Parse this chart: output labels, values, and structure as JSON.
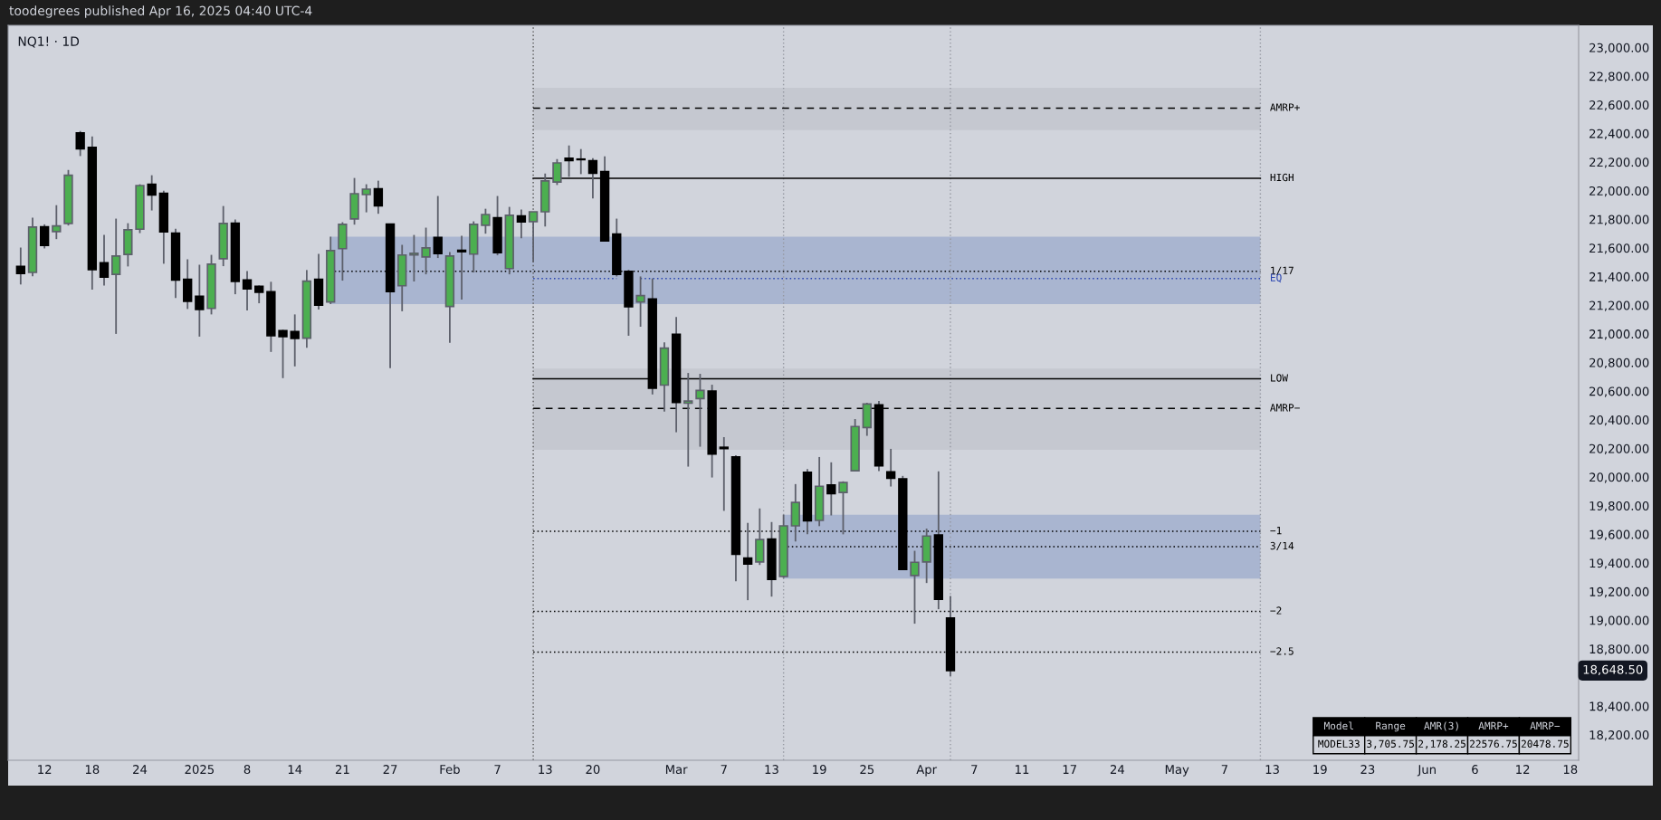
{
  "chart_data": {
    "type": "candlestick",
    "title": "NQ1! · 1D",
    "subtitle": "toodegrees published Apr 16, 2025 04:40 UTC-4",
    "categories": [
      null,
      null,
      "12",
      null,
      null,
      null,
      "18",
      null,
      null,
      null,
      "24",
      null,
      null,
      null,
      null,
      "2025",
      null,
      null,
      null,
      "8",
      null,
      null,
      null,
      "14",
      null,
      null,
      null,
      "21",
      null,
      null,
      null,
      "27",
      null,
      null,
      null,
      null,
      "Feb",
      null,
      null,
      null,
      "7",
      null,
      null,
      null,
      "13",
      null,
      null,
      null,
      "20",
      null,
      null,
      null,
      null,
      null,
      null,
      "Mar",
      null,
      null,
      null,
      "7",
      null,
      null,
      null,
      "13",
      null,
      null,
      null,
      "19",
      null,
      null,
      null,
      "25",
      null,
      null,
      null,
      null,
      "Apr",
      null,
      null,
      null,
      "7",
      null,
      null,
      null,
      "11",
      null,
      null,
      null,
      "17",
      null,
      null,
      null,
      "24",
      null,
      null,
      null,
      null,
      "May",
      null,
      null,
      null,
      "7",
      null,
      null,
      null,
      "13",
      null,
      null,
      null,
      "19",
      null,
      null,
      null,
      "23",
      null,
      null,
      null,
      null,
      "Jun",
      null,
      null,
      null,
      "6",
      null,
      null,
      null,
      "12",
      null,
      null,
      null,
      "18"
    ],
    "ohlc": [
      [
        21471,
        21603,
        21345,
        21422
      ],
      [
        21429,
        21811,
        21403,
        21746
      ],
      [
        21748,
        21765,
        21597,
        21618
      ],
      [
        21714,
        21899,
        21662,
        21754
      ],
      [
        21771,
        22145,
        21757,
        22108
      ],
      [
        22404,
        22417,
        22242,
        22293
      ],
      [
        22303,
        22379,
        21309,
        21448
      ],
      [
        21496,
        21691,
        21338,
        21397
      ],
      [
        21416,
        21805,
        21000,
        21544
      ],
      [
        21555,
        21773,
        21471,
        21727
      ],
      [
        21731,
        22045,
        21704,
        22036
      ],
      [
        22045,
        22108,
        21862,
        21971
      ],
      [
        21982,
        22000,
        21490,
        21712
      ],
      [
        21704,
        21735,
        21250,
        21376
      ],
      [
        21382,
        21521,
        21174,
        21227
      ],
      [
        21262,
        21483,
        20981,
        21170
      ],
      [
        21178,
        21552,
        21136,
        21487
      ],
      [
        21525,
        21893,
        21473,
        21771
      ],
      [
        21773,
        21799,
        21277,
        21366
      ],
      [
        21376,
        21439,
        21164,
        21315
      ],
      [
        21332,
        21338,
        21214,
        21290
      ],
      [
        21294,
        21364,
        20874,
        20987
      ],
      [
        21023,
        21029,
        20691,
        20981
      ],
      [
        21017,
        21136,
        20773,
        20968
      ],
      [
        20970,
        21446,
        20903,
        21368
      ],
      [
        21382,
        21559,
        21170,
        21201
      ],
      [
        21223,
        21679,
        21208,
        21582
      ],
      [
        21595,
        21780,
        21372,
        21765
      ],
      [
        21803,
        22089,
        21763,
        21979
      ],
      [
        21973,
        22045,
        21849,
        22011
      ],
      [
        22013,
        22070,
        21839,
        21895
      ],
      [
        21767,
        21767,
        20760,
        21296
      ],
      [
        21336,
        21622,
        21158,
        21551
      ],
      [
        21551,
        21691,
        21366,
        21563
      ],
      [
        21538,
        21742,
        21416,
        21601
      ],
      [
        21673,
        21963,
        21530,
        21561
      ],
      [
        21191,
        21572,
        20937,
        21544
      ],
      [
        21584,
        21685,
        21240,
        21574
      ],
      [
        21557,
        21786,
        21429,
        21765
      ],
      [
        21759,
        21874,
        21700,
        21834
      ],
      [
        21811,
        21963,
        21549,
        21567
      ],
      [
        21456,
        21887,
        21416,
        21828
      ],
      [
        21824,
        21868,
        21668,
        21782
      ],
      [
        21784,
        21853,
        21502,
        21853
      ],
      [
        21853,
        22120,
        21750,
        22068
      ],
      [
        22061,
        22221,
        22040,
        22194
      ],
      [
        22227,
        22316,
        22097,
        22211
      ],
      [
        22221,
        22291,
        22116,
        22217
      ],
      [
        22209,
        22227,
        21946,
        22122
      ],
      [
        22133,
        22240,
        21649,
        21649
      ],
      [
        21698,
        21805,
        21401,
        21416
      ],
      [
        21437,
        21448,
        20987,
        21189
      ],
      [
        21223,
        21401,
        21050,
        21267
      ],
      [
        21244,
        21387,
        20577,
        20621
      ],
      [
        20642,
        20941,
        20457,
        20901
      ],
      [
        20998,
        21118,
        20313,
        20521
      ],
      [
        20516,
        20727,
        20073,
        20531
      ],
      [
        20548,
        20721,
        20212,
        20605
      ],
      [
        20600,
        20645,
        19997,
        20161
      ],
      [
        20208,
        20279,
        19764,
        20199
      ],
      [
        20140,
        20153,
        19272,
        19461
      ],
      [
        19434,
        19680,
        19140,
        19392
      ],
      [
        19407,
        19781,
        19386,
        19564
      ],
      [
        19567,
        19686,
        19165,
        19285
      ],
      [
        19306,
        19737,
        19295,
        19659
      ],
      [
        19659,
        19951,
        19550,
        19823
      ],
      [
        20033,
        20056,
        19600,
        19695
      ],
      [
        19697,
        20140,
        19657,
        19936
      ],
      [
        19945,
        20103,
        19732,
        19884
      ],
      [
        19892,
        19970,
        19600,
        19962
      ],
      [
        20044,
        20405,
        20044,
        20353
      ],
      [
        20346,
        20519,
        20288,
        20510
      ],
      [
        20504,
        20531,
        20042,
        20079
      ],
      [
        20037,
        20197,
        19934,
        19991
      ],
      [
        19987,
        20008,
        19354,
        19354
      ],
      [
        19312,
        19485,
        18976,
        19405
      ],
      [
        19407,
        19640,
        19260,
        19588
      ],
      [
        19596,
        20040,
        19077,
        19146
      ],
      [
        19016,
        19169,
        18610,
        18648.5
      ],
      null,
      null,
      null,
      null,
      null,
      null,
      null,
      null,
      null,
      null,
      null,
      null,
      null,
      null,
      null,
      null,
      null,
      null,
      null,
      null,
      null,
      null,
      null,
      null,
      null,
      null,
      null,
      null,
      null,
      null,
      null,
      null,
      null,
      null,
      null,
      null,
      null,
      null,
      null,
      null,
      null,
      null,
      null,
      null,
      null,
      null,
      null,
      null,
      null,
      null,
      null,
      null
    ],
    "colors": [
      "#000000",
      "#4caf50",
      "#000000",
      "#4caf50",
      "#4caf50",
      "#000000",
      "#000000",
      "#000000",
      "#4caf50",
      "#4caf50",
      "#4caf50",
      "#000000",
      "#000000",
      "#000000",
      "#000000",
      "#000000",
      "#4caf50",
      "#4caf50",
      "#000000",
      "#000000",
      "#000000",
      "#000000",
      "#000000",
      "#000000",
      "#4caf50",
      "#000000",
      "#4caf50",
      "#4caf50",
      "#4caf50",
      "#4caf50",
      "#000000",
      "#000000",
      "#4caf50",
      "#4caf50",
      "#4caf50",
      "#000000",
      "#4caf50",
      "#000000",
      "#4caf50",
      "#4caf50",
      "#000000",
      "#4caf50",
      "#000000",
      "#4caf50",
      "#4caf50",
      "#4caf50",
      "#000000",
      "#000000",
      "#000000",
      "#000000",
      "#000000",
      "#000000",
      "#4caf50",
      "#000000",
      "#4caf50",
      "#000000",
      "#4caf50",
      "#4caf50",
      "#000000",
      "#000000",
      "#000000",
      "#000000",
      "#4caf50",
      "#000000",
      "#4caf50",
      "#4caf50",
      "#000000",
      "#4caf50",
      "#000000",
      "#4caf50",
      "#4caf50",
      "#4caf50",
      "#000000",
      "#000000",
      "#000000",
      "#4caf50",
      "#4caf50",
      "#000000",
      "#000000",
      null,
      null,
      null,
      null,
      null,
      null,
      null,
      null,
      null,
      null,
      null,
      null,
      null,
      null,
      null,
      null,
      null,
      null,
      null,
      null,
      null,
      null,
      null,
      null,
      null,
      null,
      null,
      null,
      null,
      null,
      null,
      null,
      null,
      null,
      null,
      null,
      null,
      null,
      null,
      null,
      null,
      null,
      null,
      null,
      null,
      null,
      null,
      null,
      null,
      null,
      null,
      null
    ],
    "ylim": [
      18022,
      23155
    ],
    "yticks": [
      {
        "value": 18200,
        "label": "18,200.00"
      },
      {
        "value": 18400,
        "label": "18,400.00"
      },
      {
        "value": 18800,
        "label": "18,800.00"
      },
      {
        "value": 19000,
        "label": "19,000.00"
      },
      {
        "value": 19200,
        "label": "19,200.00"
      },
      {
        "value": 19400,
        "label": "19,400.00"
      },
      {
        "value": 19600,
        "label": "19,600.00"
      },
      {
        "value": 19800,
        "label": "19,800.00"
      },
      {
        "value": 20000,
        "label": "20,000.00"
      },
      {
        "value": 20200,
        "label": "20,200.00"
      },
      {
        "value": 20400,
        "label": "20,400.00"
      },
      {
        "value": 20600,
        "label": "20,600.00"
      },
      {
        "value": 20800,
        "label": "20,800.00"
      },
      {
        "value": 21000,
        "label": "21,000.00"
      },
      {
        "value": 21200,
        "label": "21,200.00"
      },
      {
        "value": 21400,
        "label": "21,400.00"
      },
      {
        "value": 21600,
        "label": "21,600.00"
      },
      {
        "value": 21800,
        "label": "21,800.00"
      },
      {
        "value": 22000,
        "label": "22,000.00"
      },
      {
        "value": 22200,
        "label": "22,200.00"
      },
      {
        "value": 22400,
        "label": "22,400.00"
      },
      {
        "value": 22600,
        "label": "22,600.00"
      },
      {
        "value": 22800,
        "label": "22,800.00"
      },
      {
        "value": 23000,
        "label": "23,000.00"
      }
    ],
    "grid": false,
    "bands": [
      {
        "axis": "y",
        "from": 22423,
        "to": 22719,
        "color": "#c5c8d0"
      },
      {
        "axis": "y",
        "from": 21208,
        "to": 21679,
        "color": "#a9b5d0"
      },
      {
        "axis": "y",
        "from": 20191,
        "to": 20758,
        "color": "#c5c8d0"
      },
      {
        "axis": "y",
        "from": 19291,
        "to": 19737,
        "color": "#a9b5d0"
      }
    ],
    "series": [
      {
        "type": "line",
        "name": "AMRP+",
        "color": "#000000",
        "line_style": "dashed",
        "values": [
          null,
          null,
          null,
          null,
          null,
          null,
          null,
          null,
          null,
          null,
          null,
          null,
          null,
          null,
          null,
          null,
          null,
          null,
          null,
          null,
          null,
          null,
          null,
          null,
          null,
          null,
          null,
          null,
          null,
          null,
          null,
          null,
          null,
          null,
          null,
          null,
          null,
          null,
          null,
          null,
          null,
          null,
          null,
          22577,
          22577,
          22577,
          22577,
          22577,
          22577,
          22577,
          22577,
          22577,
          22577,
          22577,
          22577,
          22577,
          22577,
          22577,
          22577,
          22577,
          22577,
          22577,
          22577,
          22577,
          22577,
          22577,
          22577,
          22577,
          22577,
          22577,
          22577,
          22577,
          22577,
          22577,
          22577,
          22577,
          22577,
          22577,
          22577,
          22577,
          22577,
          22577,
          22577,
          22577,
          22577,
          22577,
          22577,
          22577,
          22577,
          22577,
          22577,
          22577,
          22577,
          22577,
          22577,
          22577,
          22577,
          22577,
          22577,
          22577,
          22577,
          22577,
          22577,
          22577,
          22577,
          null,
          null,
          null,
          null,
          null,
          null,
          null,
          null,
          null,
          null,
          null,
          null,
          null,
          null,
          null,
          null,
          null,
          null,
          null,
          null,
          null,
          null,
          null,
          null,
          null,
          null
        ]
      },
      {
        "type": "line",
        "name": "HIGH",
        "color": "#000000",
        "line_style": "solid",
        "values": [
          null,
          null,
          null,
          null,
          null,
          null,
          null,
          null,
          null,
          null,
          null,
          null,
          null,
          null,
          null,
          null,
          null,
          null,
          null,
          null,
          null,
          null,
          null,
          null,
          null,
          null,
          null,
          null,
          null,
          null,
          null,
          null,
          null,
          null,
          null,
          null,
          null,
          null,
          null,
          null,
          null,
          null,
          null,
          22087,
          22087,
          22087,
          22087,
          22087,
          22087,
          22087,
          22087,
          22087,
          22087,
          22087,
          22087,
          22087,
          22087,
          22087,
          22087,
          22087,
          22087,
          22087,
          22087,
          22087,
          22087,
          22087,
          22087,
          22087,
          22087,
          22087,
          22087,
          22087,
          22087,
          22087,
          22087,
          22087,
          22087,
          22087,
          22087,
          22087,
          22087,
          22087,
          22087,
          22087,
          22087,
          22087,
          22087,
          22087,
          22087,
          22087,
          22087,
          22087,
          22087,
          22087,
          22087,
          22087,
          22087,
          22087,
          22087,
          22087,
          22087,
          22087,
          22087,
          22087,
          22087,
          null,
          null,
          null,
          null,
          null,
          null,
          null,
          null,
          null,
          null,
          null,
          null,
          null,
          null,
          null,
          null,
          null,
          null,
          null,
          null,
          null,
          null,
          null,
          null,
          null,
          null
        ]
      },
      {
        "type": "line",
        "name": "1/17",
        "color": "#000000",
        "line_style": "dotted",
        "values": [
          null,
          null,
          null,
          null,
          null,
          null,
          null,
          null,
          null,
          null,
          null,
          null,
          null,
          null,
          null,
          null,
          null,
          null,
          null,
          null,
          null,
          null,
          null,
          null,
          null,
          null,
          21437,
          21437,
          21437,
          21437,
          21437,
          21437,
          21437,
          21437,
          21437,
          21437,
          21437,
          21437,
          21437,
          21437,
          21437,
          21437,
          21437,
          21437,
          21437,
          21437,
          21437,
          21437,
          21437,
          21437,
          21437,
          21437,
          21437,
          21437,
          21437,
          21437,
          21437,
          21437,
          21437,
          21437,
          21437,
          21437,
          21437,
          21437,
          21437,
          21437,
          21437,
          21437,
          21437,
          21437,
          21437,
          21437,
          21437,
          21437,
          21437,
          21437,
          21437,
          21437,
          21437,
          21437,
          21437,
          21437,
          21437,
          21437,
          21437,
          21437,
          21437,
          21437,
          21437,
          21437,
          21437,
          21437,
          21437,
          21437,
          21437,
          21437,
          21437,
          21437,
          21437,
          21437,
          21437,
          21437,
          21437,
          21437,
          21437,
          null,
          null,
          null,
          null,
          null,
          null,
          null,
          null,
          null,
          null,
          null,
          null,
          null,
          null,
          null,
          null,
          null,
          null,
          null,
          null,
          null,
          null,
          null,
          null,
          null,
          null
        ]
      },
      {
        "type": "line",
        "name": "EQ",
        "color": "#2a45b0",
        "line_style": "dotted",
        "values": [
          null,
          null,
          null,
          null,
          null,
          null,
          null,
          null,
          null,
          null,
          null,
          null,
          null,
          null,
          null,
          null,
          null,
          null,
          null,
          null,
          null,
          null,
          null,
          null,
          null,
          null,
          null,
          null,
          null,
          null,
          null,
          null,
          null,
          null,
          null,
          null,
          null,
          null,
          null,
          null,
          null,
          null,
          null,
          21387,
          21387,
          21387,
          21387,
          21387,
          21387,
          21387,
          21387,
          null,
          21387,
          21387,
          21387,
          21387,
          21387,
          21387,
          21387,
          21387,
          21387,
          21387,
          21387,
          21387,
          21387,
          21387,
          21387,
          21387,
          21387,
          21387,
          21387,
          21387,
          21387,
          21387,
          21387,
          21387,
          21387,
          21387,
          21387,
          21387,
          21387,
          21387,
          21387,
          21387,
          21387,
          21387,
          21387,
          21387,
          21387,
          21387,
          21387,
          21387,
          21387,
          21387,
          21387,
          21387,
          21387,
          21387,
          21387,
          21387,
          21387,
          21387,
          21387,
          21387,
          21387,
          null,
          null,
          null,
          null,
          null,
          null,
          null,
          null,
          null,
          null,
          null,
          null,
          null,
          null,
          null,
          null,
          null,
          null,
          null,
          null,
          null,
          null,
          null,
          null,
          null,
          null
        ]
      },
      {
        "type": "line",
        "name": "LOW",
        "color": "#000000",
        "line_style": "solid",
        "values": [
          null,
          null,
          null,
          null,
          null,
          null,
          null,
          null,
          null,
          null,
          null,
          null,
          null,
          null,
          null,
          null,
          null,
          null,
          null,
          null,
          null,
          null,
          null,
          null,
          null,
          null,
          null,
          null,
          null,
          null,
          null,
          null,
          null,
          null,
          null,
          null,
          null,
          null,
          null,
          null,
          null,
          null,
          null,
          20687,
          20687,
          20687,
          20687,
          20687,
          20687,
          20687,
          20687,
          20687,
          20687,
          20687,
          null,
          20687,
          20687,
          20687,
          20687,
          20687,
          20687,
          20687,
          20687,
          20687,
          20687,
          20687,
          20687,
          20687,
          20687,
          20687,
          20687,
          20687,
          20687,
          20687,
          20687,
          20687,
          20687,
          20687,
          20687,
          20687,
          20687,
          20687,
          20687,
          20687,
          20687,
          20687,
          20687,
          20687,
          20687,
          20687,
          20687,
          20687,
          20687,
          20687,
          20687,
          20687,
          20687,
          20687,
          20687,
          20687,
          20687,
          20687,
          20687,
          20687,
          20687,
          null,
          null,
          null,
          null,
          null,
          null,
          null,
          null,
          null,
          null,
          null,
          null,
          null,
          null,
          null,
          null,
          null,
          null,
          null,
          null,
          null,
          null,
          null,
          null,
          null,
          null
        ]
      },
      {
        "type": "line",
        "name": "AMRP−",
        "color": "#000000",
        "line_style": "dashed",
        "values": [
          null,
          null,
          null,
          null,
          null,
          null,
          null,
          null,
          null,
          null,
          null,
          null,
          null,
          null,
          null,
          null,
          null,
          null,
          null,
          null,
          null,
          null,
          null,
          null,
          null,
          null,
          null,
          null,
          null,
          null,
          null,
          null,
          null,
          null,
          null,
          null,
          null,
          null,
          null,
          null,
          null,
          null,
          null,
          20479,
          20479,
          20479,
          20479,
          20479,
          20479,
          20479,
          20479,
          20479,
          20479,
          20479,
          20479,
          20479,
          20479,
          20479,
          20479,
          20479,
          20479,
          20479,
          20479,
          20479,
          20479,
          20479,
          20479,
          20479,
          20479,
          20479,
          20479,
          20479,
          20479,
          20479,
          20479,
          20479,
          20479,
          20479,
          20479,
          20479,
          20479,
          20479,
          20479,
          20479,
          20479,
          20479,
          20479,
          20479,
          20479,
          20479,
          20479,
          20479,
          20479,
          20479,
          20479,
          20479,
          20479,
          20479,
          20479,
          20479,
          20479,
          20479,
          20479,
          20479,
          20479,
          null,
          null,
          null,
          null,
          null,
          null,
          null,
          null,
          null,
          null,
          null,
          null,
          null,
          null,
          null,
          null,
          null,
          null,
          null,
          null,
          null,
          null,
          null,
          null,
          null,
          null
        ]
      },
      {
        "type": "line",
        "name": "−1",
        "color": "#000000",
        "line_style": "dotted",
        "values": [
          null,
          null,
          null,
          null,
          null,
          null,
          null,
          null,
          null,
          null,
          null,
          null,
          null,
          null,
          null,
          null,
          null,
          null,
          null,
          null,
          null,
          null,
          null,
          null,
          null,
          null,
          null,
          null,
          null,
          null,
          null,
          null,
          null,
          null,
          null,
          null,
          null,
          null,
          null,
          null,
          null,
          null,
          null,
          19621,
          19621,
          19621,
          19621,
          19621,
          19621,
          19621,
          19621,
          19621,
          19621,
          19621,
          19621,
          19621,
          19621,
          19621,
          19621,
          19621,
          19621,
          19621,
          19621,
          19621,
          19621,
          19621,
          19621,
          19621,
          19621,
          19621,
          19621,
          19621,
          19621,
          19621,
          19621,
          19621,
          19621,
          19621,
          19621,
          19621,
          19621,
          19621,
          19621,
          19621,
          19621,
          19621,
          19621,
          19621,
          19621,
          19621,
          19621,
          19621,
          19621,
          19621,
          19621,
          19621,
          19621,
          19621,
          19621,
          19621,
          19621,
          19621,
          19621,
          19621,
          19621,
          null,
          null,
          null,
          null,
          null,
          null,
          null,
          null,
          null,
          null,
          null,
          null,
          null,
          null,
          null,
          null,
          null,
          null,
          null,
          null,
          null,
          null,
          null,
          null,
          null,
          null
        ]
      },
      {
        "type": "line",
        "name": "3/14",
        "color": "#000000",
        "line_style": "dotted",
        "values": [
          null,
          null,
          null,
          null,
          null,
          null,
          null,
          null,
          null,
          null,
          null,
          null,
          null,
          null,
          null,
          null,
          null,
          null,
          null,
          null,
          null,
          null,
          null,
          null,
          null,
          null,
          null,
          null,
          null,
          null,
          null,
          null,
          null,
          null,
          null,
          null,
          null,
          null,
          null,
          null,
          null,
          null,
          null,
          null,
          null,
          null,
          null,
          null,
          null,
          null,
          null,
          null,
          null,
          null,
          null,
          null,
          null,
          null,
          null,
          null,
          null,
          null,
          null,
          null,
          19514,
          19514,
          19514,
          19514,
          19514,
          19514,
          19514,
          19514,
          19514,
          19514,
          19514,
          19514,
          19514,
          19514,
          19514,
          19514,
          19514,
          19514,
          19514,
          19514,
          19514,
          19514,
          19514,
          19514,
          19514,
          19514,
          19514,
          19514,
          19514,
          19514,
          19514,
          19514,
          19514,
          19514,
          19514,
          19514,
          19514,
          19514,
          19514,
          19514,
          19514,
          null,
          null,
          null,
          null,
          null,
          null,
          null,
          null,
          null,
          null,
          null,
          null,
          null,
          null,
          null,
          null,
          null,
          null,
          null,
          null,
          null,
          null,
          null,
          null,
          null,
          null
        ]
      },
      {
        "type": "line",
        "name": "−2",
        "color": "#000000",
        "line_style": "dotted",
        "values": [
          null,
          null,
          null,
          null,
          null,
          null,
          null,
          null,
          null,
          null,
          null,
          null,
          null,
          null,
          null,
          null,
          null,
          null,
          null,
          null,
          null,
          null,
          null,
          null,
          null,
          null,
          null,
          null,
          null,
          null,
          null,
          null,
          null,
          null,
          null,
          null,
          null,
          null,
          null,
          null,
          null,
          null,
          null,
          19062,
          19062,
          19062,
          19062,
          19062,
          19062,
          19062,
          19062,
          19062,
          19062,
          19062,
          19062,
          19062,
          19062,
          19062,
          19062,
          19062,
          19062,
          19062,
          19062,
          19062,
          19062,
          19062,
          19062,
          19062,
          19062,
          19062,
          19062,
          19062,
          19062,
          19062,
          19062,
          19062,
          19062,
          19062,
          19062,
          19062,
          19062,
          19062,
          19062,
          19062,
          19062,
          19062,
          19062,
          19062,
          19062,
          19062,
          19062,
          19062,
          19062,
          19062,
          19062,
          19062,
          19062,
          19062,
          19062,
          19062,
          19062,
          19062,
          19062,
          19062,
          19062,
          null,
          null,
          null,
          null,
          null,
          null,
          null,
          null,
          null,
          null,
          null,
          null,
          null,
          null,
          null,
          null,
          null,
          null,
          null,
          null,
          null,
          null,
          null,
          null,
          null,
          null
        ]
      },
      {
        "type": "line",
        "name": "−2.5",
        "color": "#000000",
        "line_style": "dotted",
        "values": [
          null,
          null,
          null,
          null,
          null,
          null,
          null,
          null,
          null,
          null,
          null,
          null,
          null,
          null,
          null,
          null,
          null,
          null,
          null,
          null,
          null,
          null,
          null,
          null,
          null,
          null,
          null,
          null,
          null,
          null,
          null,
          null,
          null,
          null,
          null,
          null,
          null,
          null,
          null,
          null,
          null,
          null,
          null,
          18778,
          18778,
          18778,
          18778,
          18778,
          18778,
          18778,
          18778,
          18778,
          18778,
          18778,
          18778,
          18778,
          18778,
          18778,
          18778,
          18778,
          18778,
          18778,
          18778,
          18778,
          18778,
          18778,
          18778,
          18778,
          18778,
          18778,
          18778,
          18778,
          18778,
          18778,
          18778,
          18778,
          18778,
          18778,
          18778,
          18778,
          18778,
          18778,
          18778,
          18778,
          18778,
          18778,
          18778,
          18778,
          18778,
          18778,
          18778,
          18778,
          18778,
          18778,
          18778,
          18778,
          18778,
          18778,
          18778,
          18778,
          18778,
          18778,
          18778,
          18778,
          18778,
          null,
          null,
          null,
          null,
          null,
          null,
          null,
          null,
          null,
          null,
          null,
          null,
          null,
          null,
          null,
          null,
          null,
          null,
          null,
          null,
          null,
          null,
          null,
          null,
          null,
          null
        ]
      }
    ],
    "annotations": [
      "18,648.50",
      "Model",
      "Range",
      "AMR(3)",
      "AMRP+",
      "AMRP−",
      "MODEL33",
      "3,705.75",
      "2,178.25",
      "22576.75",
      "20478.75"
    ]
  }
}
